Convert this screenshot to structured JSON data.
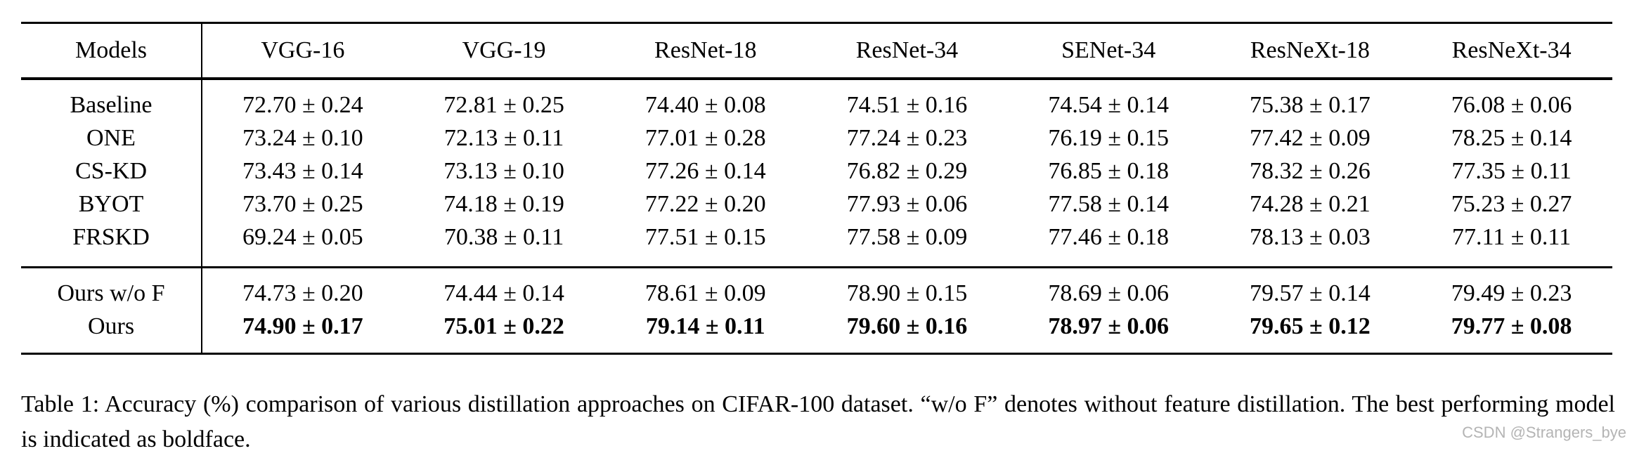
{
  "table": {
    "columns": [
      "Models",
      "VGG-16",
      "VGG-19",
      "ResNet-18",
      "ResNet-34",
      "SENet-34",
      "ResNeXt-18",
      "ResNeXt-34"
    ],
    "baseline_rows": [
      {
        "model": "Baseline",
        "bold_values": false,
        "values": [
          "72.70 ± 0.24",
          "72.81 ± 0.25",
          "74.40 ± 0.08",
          "74.51 ± 0.16",
          "74.54 ± 0.14",
          "75.38 ± 0.17",
          "76.08 ± 0.06"
        ]
      },
      {
        "model": "ONE",
        "bold_values": false,
        "values": [
          "73.24 ± 0.10",
          "72.13 ± 0.11",
          "77.01 ± 0.28",
          "77.24 ± 0.23",
          "76.19 ± 0.15",
          "77.42 ± 0.09",
          "78.25 ± 0.14"
        ]
      },
      {
        "model": "CS-KD",
        "bold_values": false,
        "values": [
          "73.43 ± 0.14",
          "73.13 ± 0.10",
          "77.26 ± 0.14",
          "76.82 ± 0.29",
          "76.85 ± 0.18",
          "78.32 ± 0.26",
          "77.35 ± 0.11"
        ]
      },
      {
        "model": "BYOT",
        "bold_values": false,
        "values": [
          "73.70 ± 0.25",
          "74.18 ± 0.19",
          "77.22 ± 0.20",
          "77.93 ± 0.06",
          "77.58 ± 0.14",
          "74.28 ± 0.21",
          "75.23 ± 0.27"
        ]
      },
      {
        "model": "FRSKD",
        "bold_values": false,
        "values": [
          "69.24 ± 0.05",
          "70.38 ± 0.11",
          "77.51 ± 0.15",
          "77.58 ± 0.09",
          "77.46 ± 0.18",
          "78.13 ± 0.03",
          "77.11 ± 0.11"
        ]
      }
    ],
    "ours_rows": [
      {
        "model": "Ours w/o F",
        "bold_values": false,
        "values": [
          "74.73 ± 0.20",
          "74.44 ± 0.14",
          "78.61 ± 0.09",
          "78.90 ± 0.15",
          "78.69 ± 0.06",
          "79.57 ± 0.14",
          "79.49 ± 0.23"
        ]
      },
      {
        "model": "Ours",
        "bold_values": true,
        "values": [
          "74.90 ± 0.17",
          "75.01 ± 0.22",
          "79.14 ± 0.11",
          "79.60 ± 0.16",
          "78.97 ± 0.06",
          "79.65 ± 0.12",
          "79.77 ± 0.08"
        ]
      }
    ]
  },
  "caption": {
    "text": "Table 1: Accuracy (%) comparison of various distillation approaches on CIFAR-100 dataset. “w/o F” denotes without feature distillation. The best performing model is indicated as boldface."
  },
  "watermark": {
    "text": "CSDN @Strangers_bye"
  }
}
